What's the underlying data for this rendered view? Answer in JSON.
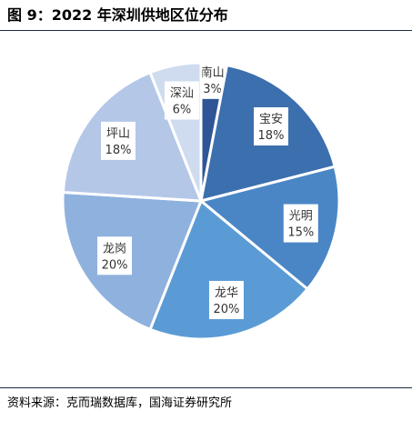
{
  "title": "图 9：2022 年深圳供地区位分布",
  "source": "资料来源：克而瑞数据库，国海证券研究所",
  "chart_data": {
    "type": "pie",
    "title": "",
    "start_angle_deg": 0,
    "direction": "clockwise",
    "slices": [
      {
        "label": "南山",
        "value": 3,
        "display": "3%",
        "color": "#2f5597"
      },
      {
        "label": "宝安",
        "value": 18,
        "display": "18%",
        "color": "#3c6fae"
      },
      {
        "label": "光明",
        "value": 15,
        "display": "15%",
        "color": "#4a86c5"
      },
      {
        "label": "龙华",
        "value": 20,
        "display": "20%",
        "color": "#5b9bd5"
      },
      {
        "label": "龙岗",
        "value": 20,
        "display": "20%",
        "color": "#8fb1dd"
      },
      {
        "label": "坪山",
        "value": 18,
        "display": "18%",
        "color": "#b4c7e7"
      },
      {
        "label": "深汕",
        "value": 6,
        "display": "6%",
        "color": "#cfdcef"
      }
    ]
  }
}
